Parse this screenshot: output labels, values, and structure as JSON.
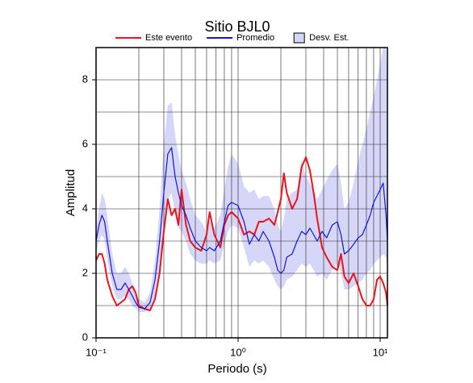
{
  "chart_data": {
    "type": "line",
    "title": "Sitio BJL0",
    "x_label": "Periodo (s)",
    "y_label": "Amplitud",
    "log_x": true,
    "grid": true,
    "legend": "top",
    "xlim": [
      0.1,
      11.25
    ],
    "ylim": [
      0,
      9
    ],
    "xticks": [
      {
        "value": 0.1,
        "label": "10⁻¹"
      },
      {
        "value": 1,
        "label": "10⁰"
      },
      {
        "value": 10,
        "label": "10¹"
      }
    ],
    "yticks": [
      0,
      2,
      4,
      6,
      8
    ],
    "yminorticks": [
      1,
      3,
      5,
      7
    ],
    "x": [
      0.1,
      0.105,
      0.11,
      0.115,
      0.12,
      0.13,
      0.14,
      0.15,
      0.16,
      0.17,
      0.18,
      0.19,
      0.2,
      0.22,
      0.24,
      0.26,
      0.28,
      0.3,
      0.32,
      0.34,
      0.36,
      0.38,
      0.4,
      0.43,
      0.46,
      0.5,
      0.55,
      0.6,
      0.63,
      0.68,
      0.75,
      0.8,
      0.85,
      0.9,
      1.0,
      1.1,
      1.2,
      1.3,
      1.4,
      1.5,
      1.65,
      1.8,
      1.9,
      2.0,
      2.1,
      2.2,
      2.4,
      2.6,
      2.8,
      3.0,
      3.2,
      3.4,
      3.6,
      3.9,
      4.2,
      4.6,
      5.0,
      5.3,
      5.6,
      6.0,
      6.5,
      7.0,
      7.5,
      8.0,
      8.5,
      9.0,
      9.5,
      10,
      10.5,
      11,
      11.25
    ],
    "band": {
      "name": "Desv. Est.",
      "color": "#d6d6f8",
      "lower": [
        2.6,
        3.0,
        3.2,
        3.0,
        2.4,
        1.6,
        1.2,
        1.2,
        1.3,
        1.2,
        1.0,
        0.9,
        0.8,
        0.8,
        0.9,
        1.3,
        2.2,
        3.4,
        4.3,
        4.5,
        3.8,
        3.4,
        3.3,
        3.0,
        2.6,
        2.4,
        2.3,
        2.3,
        2.4,
        2.3,
        2.4,
        2.9,
        3.3,
        3.5,
        3.4,
        2.8,
        2.2,
        2.4,
        2.3,
        2.4,
        2.2,
        1.8,
        1.6,
        1.5,
        1.6,
        1.8,
        1.9,
        2.1,
        2.3,
        2.2,
        2.3,
        2.1,
        1.9,
        2.0,
        1.8,
        2.1,
        2.3,
        2.0,
        1.5,
        1.5,
        1.6,
        1.7,
        1.8,
        2.0,
        2.1,
        2.3,
        2.4,
        2.5,
        2.6,
        2.5,
        2.2
      ],
      "upper": [
        3.4,
        4.0,
        4.5,
        4.3,
        3.8,
        2.6,
        2.0,
        2.0,
        2.2,
        2.0,
        1.7,
        1.4,
        1.2,
        1.1,
        1.4,
        2.4,
        4.0,
        6.0,
        7.2,
        7.3,
        6.3,
        5.7,
        5.2,
        4.8,
        4.3,
        3.8,
        3.6,
        3.3,
        3.6,
        3.4,
        3.8,
        4.6,
        5.3,
        5.7,
        5.4,
        4.7,
        4.5,
        4.6,
        4.3,
        4.4,
        4.4,
        4.0,
        3.5,
        3.3,
        3.7,
        4.3,
        4.5,
        4.6,
        5.5,
        5.0,
        4.8,
        4.6,
        4.3,
        4.6,
        4.9,
        5.2,
        5.4,
        4.8,
        4.0,
        4.2,
        4.8,
        5.5,
        6.0,
        6.5,
        7.0,
        7.5,
        8.0,
        8.5,
        9.0,
        9.0,
        8.0
      ]
    },
    "series": [
      {
        "name": "Este evento",
        "color": "#e8141a",
        "values": [
          2.4,
          2.6,
          2.6,
          2.3,
          1.8,
          1.3,
          1.0,
          1.1,
          1.2,
          1.5,
          1.6,
          1.4,
          1.0,
          0.9,
          0.85,
          1.2,
          2.0,
          3.3,
          4.3,
          3.8,
          4.0,
          3.5,
          4.6,
          3.5,
          3.0,
          2.8,
          2.7,
          3.2,
          3.9,
          3.2,
          2.8,
          3.5,
          3.8,
          3.9,
          3.7,
          3.2,
          3.3,
          3.2,
          3.6,
          3.6,
          3.7,
          3.5,
          3.9,
          4.3,
          5.1,
          4.5,
          4.0,
          4.3,
          5.3,
          5.6,
          5.2,
          4.5,
          3.7,
          2.8,
          2.5,
          2.2,
          2.1,
          2.6,
          1.9,
          1.7,
          2.0,
          1.6,
          1.2,
          1.0,
          1.0,
          1.2,
          1.8,
          1.9,
          1.7,
          1.4,
          1.0
        ]
      },
      {
        "name": "Promedio",
        "color": "#1414d8",
        "values": [
          3.0,
          3.5,
          3.8,
          3.6,
          3.0,
          2.0,
          1.5,
          1.5,
          1.7,
          1.5,
          1.3,
          1.1,
          0.95,
          0.9,
          1.1,
          1.8,
          3.0,
          4.5,
          5.7,
          5.9,
          5.0,
          4.5,
          4.1,
          3.8,
          3.4,
          3.0,
          2.8,
          2.7,
          2.8,
          2.7,
          3.0,
          3.6,
          4.1,
          4.2,
          4.1,
          3.6,
          2.9,
          3.2,
          3.0,
          3.3,
          3.0,
          2.5,
          2.1,
          2.0,
          2.1,
          2.5,
          2.6,
          3.0,
          3.3,
          3.2,
          3.4,
          3.2,
          3.0,
          3.3,
          3.1,
          3.5,
          3.6,
          3.2,
          2.6,
          2.7,
          2.9,
          3.1,
          3.2,
          3.5,
          3.8,
          4.2,
          4.4,
          4.6,
          4.8,
          3.8,
          3.0
        ]
      }
    ]
  }
}
